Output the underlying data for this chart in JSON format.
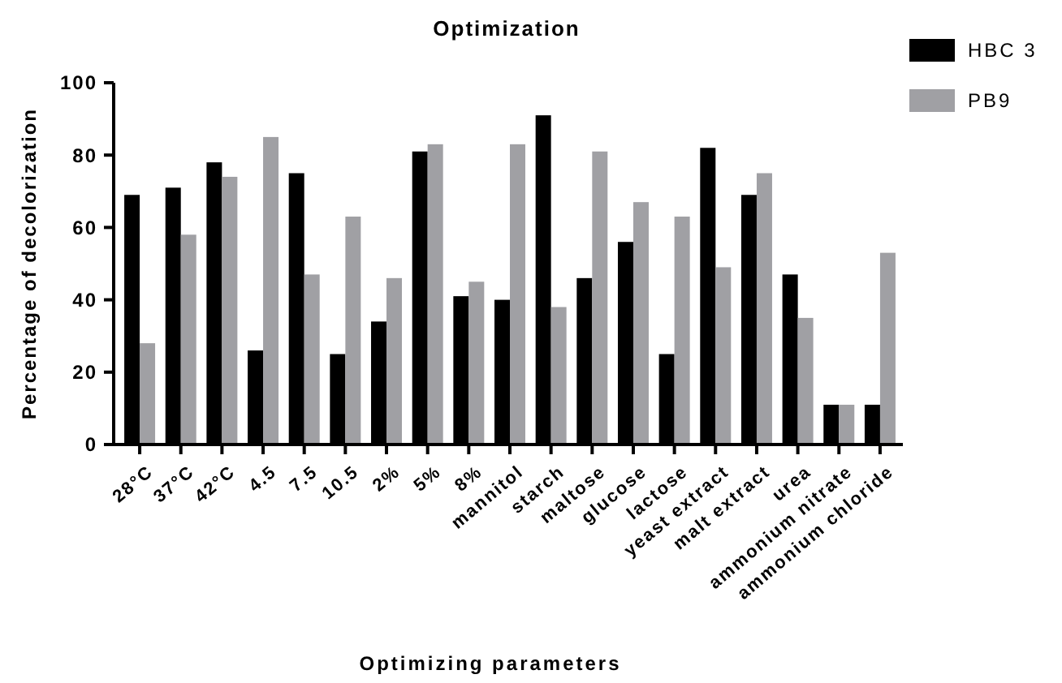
{
  "chart_data": {
    "type": "bar",
    "title": "Optimization",
    "xlabel": "Optimizing parameters",
    "ylabel": "Percentage of decolorization",
    "categories": [
      "28°C",
      "37°C",
      "42°C",
      "4.5",
      "7.5",
      "10.5",
      "2%",
      "5%",
      "8%",
      "mannitol",
      "starch",
      "maltose",
      "glucose",
      "lactose",
      "yeast extract",
      "malt extract",
      "urea",
      "ammonium nitrate",
      "ammonium chloride"
    ],
    "series": [
      {
        "name": "HBC 3",
        "color": "#000000",
        "values": [
          69,
          71,
          78,
          26,
          75,
          25,
          34,
          81,
          41,
          40,
          91,
          46,
          56,
          25,
          82,
          69,
          47,
          11,
          11
        ]
      },
      {
        "name": "PB9",
        "color": "#a0a0a4",
        "values": [
          28,
          58,
          74,
          85,
          47,
          63,
          46,
          83,
          45,
          83,
          38,
          81,
          67,
          63,
          49,
          75,
          35,
          11,
          53
        ]
      }
    ],
    "ylim": [
      0,
      100
    ],
    "yticks": [
      0,
      20,
      40,
      60,
      80,
      100
    ],
    "legend": "top right",
    "grid": false
  }
}
